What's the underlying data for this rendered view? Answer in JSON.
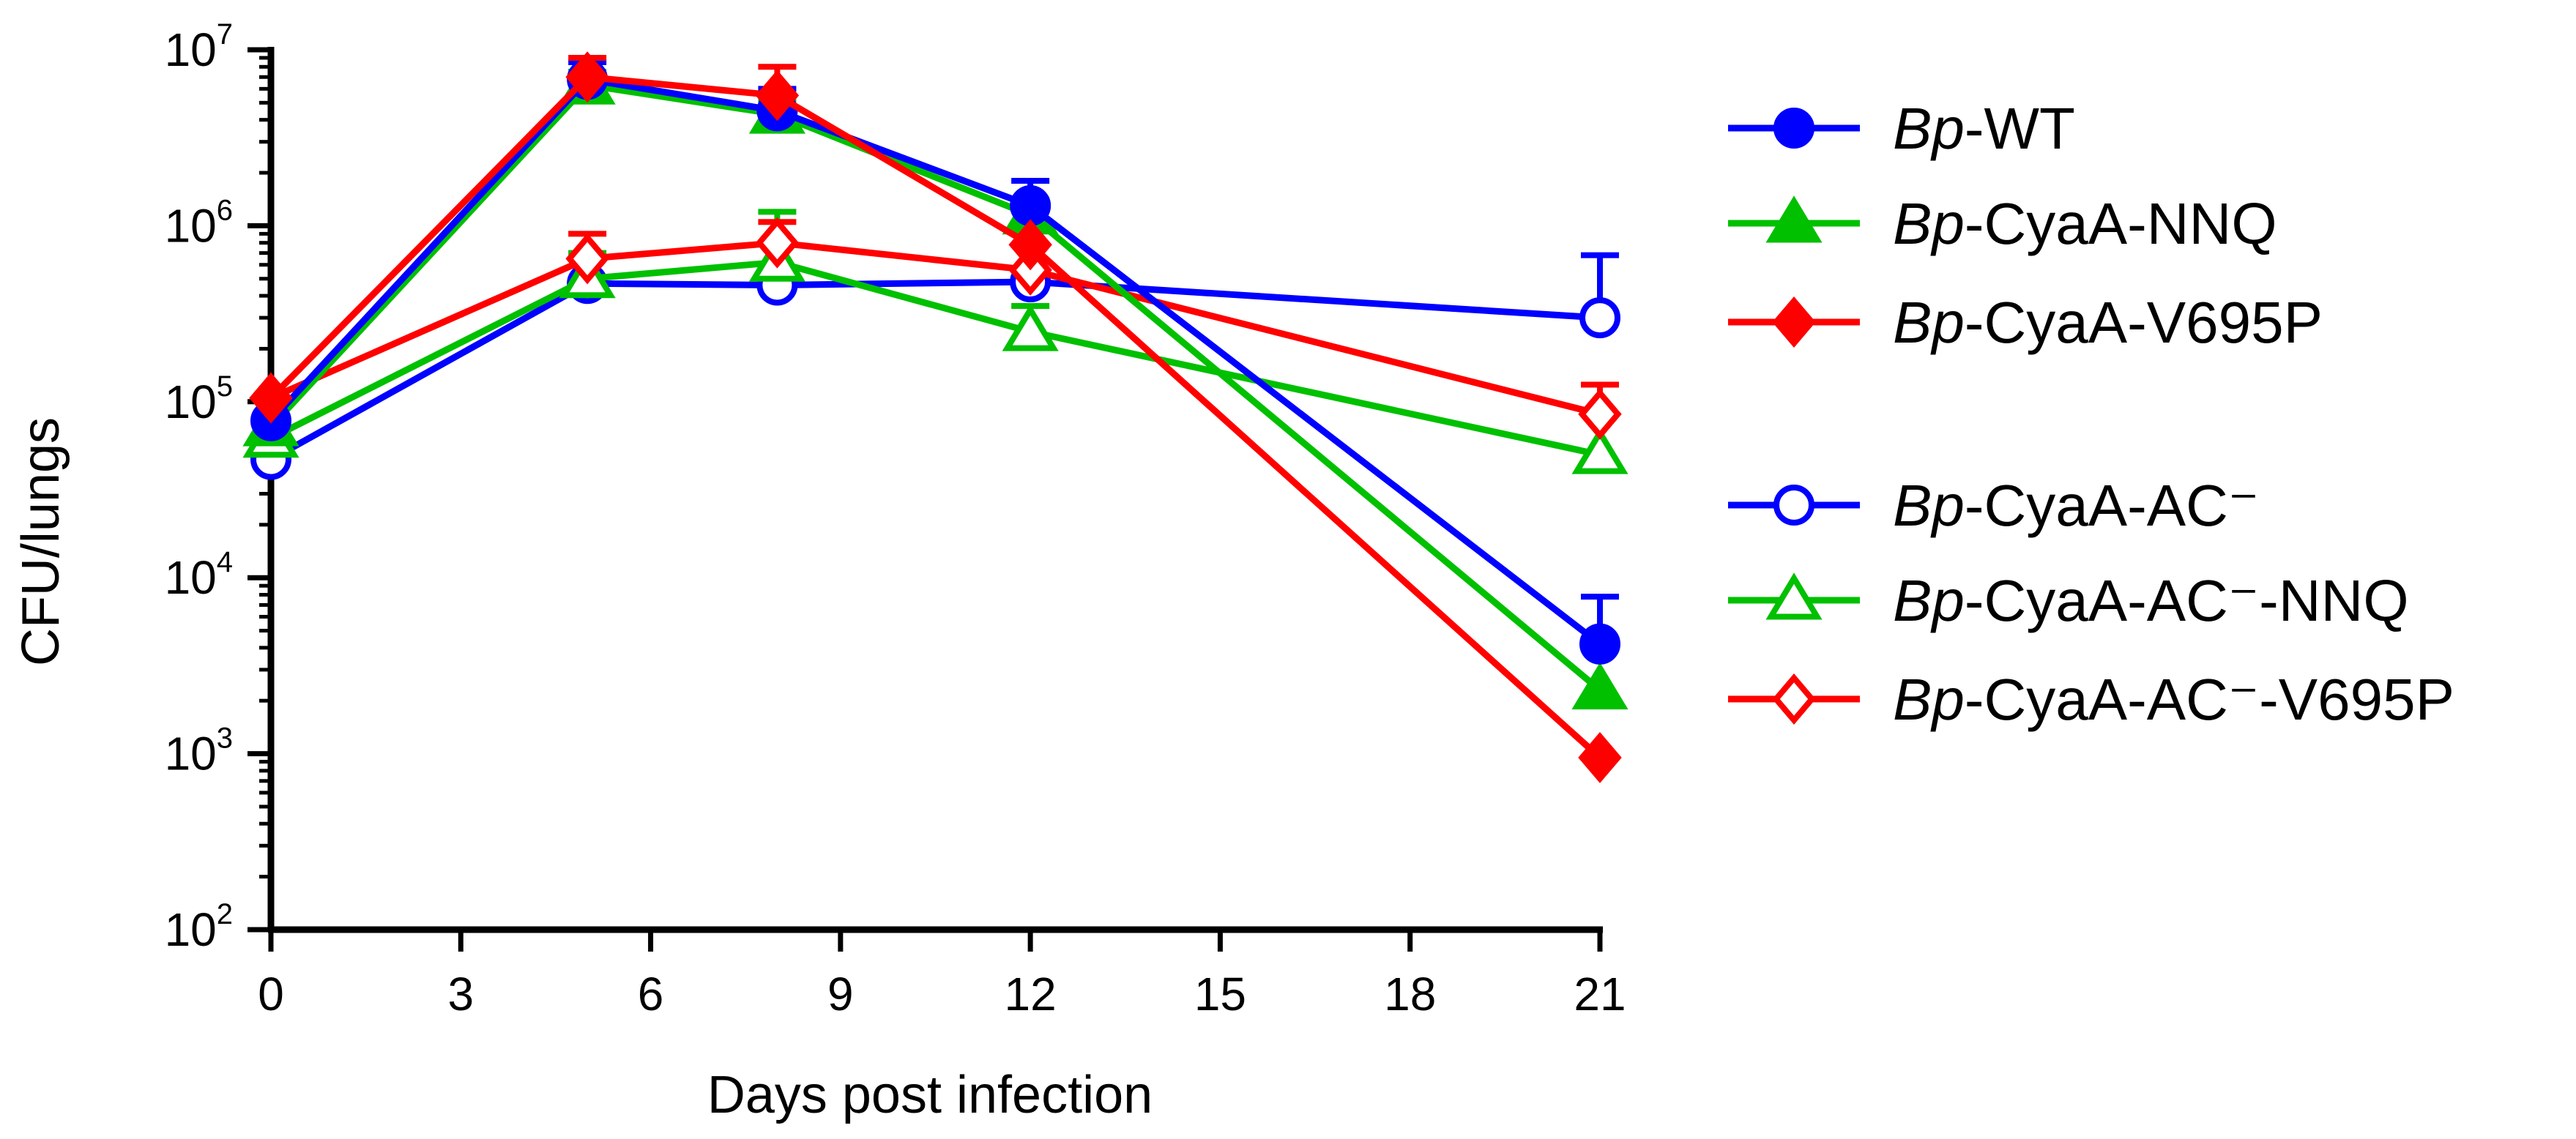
{
  "chart_data": {
    "type": "line",
    "title": "",
    "xlabel": "Days post infection",
    "ylabel": "CFU/lungs",
    "yscale": "log",
    "xlim": [
      0,
      21
    ],
    "ylim": [
      100,
      10000000
    ],
    "xticks": [
      0,
      3,
      6,
      9,
      12,
      15,
      18,
      21
    ],
    "x_tick_labels": [
      "0",
      "3",
      "6",
      "9",
      "12",
      "15",
      "18",
      "21"
    ],
    "yticks": [
      {
        "value": 100,
        "base": "10",
        "exp": "2"
      },
      {
        "value": 1000,
        "base": "10",
        "exp": "3"
      },
      {
        "value": 10000,
        "base": "10",
        "exp": "4"
      },
      {
        "value": 100000,
        "base": "10",
        "exp": "5"
      },
      {
        "value": 1000000,
        "base": "10",
        "exp": "6"
      },
      {
        "value": 10000000,
        "base": "10",
        "exp": "7"
      }
    ],
    "x": [
      0,
      5,
      8,
      12,
      21
    ],
    "series": [
      {
        "name": "Bp-WT",
        "prefix": "Bp",
        "suffix": "-WT",
        "color": "#0000ff",
        "marker": "circle",
        "filled": true,
        "values": [
          78000,
          6800000,
          4500000,
          1300000,
          4200
        ],
        "errors": [
          null,
          8500000,
          6000000,
          1800000,
          7800
        ]
      },
      {
        "name": "Bp-CyaA-NNQ",
        "prefix": "Bp",
        "suffix": "-CyaA-NNQ",
        "color": "#00c000",
        "marker": "triangle",
        "filled": true,
        "values": [
          72000,
          6300000,
          4300000,
          1150000,
          2300
        ],
        "errors": [
          null,
          7500000,
          5200000,
          1400000,
          null
        ]
      },
      {
        "name": "Bp-CyaA-V695P",
        "prefix": "Bp",
        "suffix": "-CyaA-V695P",
        "color": "#ff0000",
        "marker": "diamond",
        "filled": true,
        "values": [
          105000,
          7000000,
          5500000,
          780000,
          950
        ],
        "errors": [
          null,
          9000000,
          8000000,
          null,
          null
        ]
      },
      {
        "name": "Bp-CyaA-AC⁻",
        "prefix": "Bp",
        "suffix": "-CyaA-AC⁻",
        "color": "#0000ff",
        "marker": "circle",
        "filled": false,
        "values": [
          47000,
          470000,
          460000,
          480000,
          300000
        ],
        "errors": [
          null,
          null,
          null,
          null,
          680000
        ]
      },
      {
        "name": "Bp-CyaA-AC⁻-NNQ",
        "prefix": "Bp",
        "suffix": "-CyaA-AC⁻-NNQ",
        "color": "#00c000",
        "marker": "triangle",
        "filled": false,
        "values": [
          62000,
          500000,
          620000,
          250000,
          50000
        ],
        "errors": [
          null,
          700000,
          1200000,
          350000,
          null
        ]
      },
      {
        "name": "Bp-CyaA-AC⁻-V695P",
        "prefix": "Bp",
        "suffix": "-CyaA-AC⁻-V695P",
        "color": "#ff0000",
        "marker": "diamond",
        "filled": false,
        "values": [
          105000,
          650000,
          800000,
          560000,
          85000
        ],
        "errors": [
          null,
          900000,
          1050000,
          null,
          125000
        ]
      }
    ]
  }
}
